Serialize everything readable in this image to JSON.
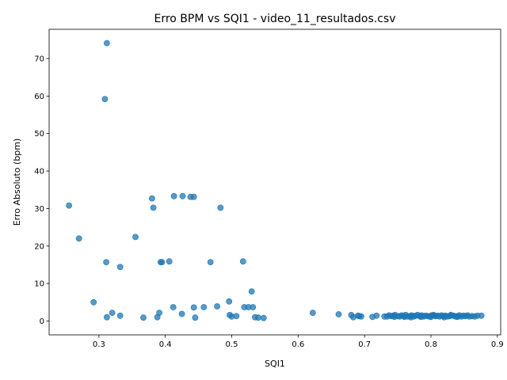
{
  "chart_data": {
    "type": "scatter",
    "title": "Erro BPM vs SQI1 - video_11_resultados.csv",
    "xlabel": "SQI1",
    "ylabel": "Erro Absoluto (bpm)",
    "xlim": [
      0.225,
      0.905
    ],
    "ylim": [
      -3.7,
      77.8
    ],
    "xticks": [
      0.3,
      0.4,
      0.5,
      0.6,
      0.7,
      0.8,
      0.9
    ],
    "xtick_labels": [
      "0.3",
      "0.4",
      "0.5",
      "0.6",
      "0.7",
      "0.8",
      "0.9"
    ],
    "yticks": [
      0,
      10,
      20,
      30,
      40,
      50,
      60,
      70
    ],
    "ytick_labels": [
      "0",
      "10",
      "20",
      "30",
      "40",
      "50",
      "60",
      "70"
    ],
    "grid": false,
    "marker_color": "#1f77b4",
    "series": [
      {
        "points": [
          [
            0.312,
            74.1
          ],
          [
            0.309,
            59.2
          ],
          [
            0.255,
            30.8
          ],
          [
            0.27,
            22.0
          ],
          [
            0.38,
            32.7
          ],
          [
            0.382,
            30.2
          ],
          [
            0.413,
            33.3
          ],
          [
            0.426,
            33.3
          ],
          [
            0.438,
            33.1
          ],
          [
            0.443,
            33.1
          ],
          [
            0.483,
            30.2
          ],
          [
            0.355,
            22.4
          ],
          [
            0.311,
            15.7
          ],
          [
            0.332,
            14.4
          ],
          [
            0.393,
            15.7
          ],
          [
            0.395,
            15.7
          ],
          [
            0.406,
            15.9
          ],
          [
            0.468,
            15.7
          ],
          [
            0.517,
            15.9
          ],
          [
            0.53,
            7.9
          ],
          [
            0.292,
            5.0
          ],
          [
            0.312,
            1.0
          ],
          [
            0.32,
            2.2
          ],
          [
            0.332,
            1.4
          ],
          [
            0.367,
            0.9
          ],
          [
            0.388,
            1.0
          ],
          [
            0.391,
            2.2
          ],
          [
            0.412,
            3.7
          ],
          [
            0.425,
            1.9
          ],
          [
            0.443,
            3.6
          ],
          [
            0.445,
            0.9
          ],
          [
            0.458,
            3.7
          ],
          [
            0.478,
            3.9
          ],
          [
            0.496,
            5.2
          ],
          [
            0.497,
            1.6
          ],
          [
            0.5,
            1.2
          ],
          [
            0.507,
            1.3
          ],
          [
            0.519,
            3.7
          ],
          [
            0.525,
            3.7
          ],
          [
            0.532,
            3.7
          ],
          [
            0.535,
            1.0
          ],
          [
            0.54,
            0.9
          ],
          [
            0.548,
            0.8
          ],
          [
            0.622,
            2.2
          ],
          [
            0.661,
            1.8
          ],
          [
            0.68,
            1.6
          ],
          [
            0.683,
            1.0
          ],
          [
            0.69,
            1.4
          ],
          [
            0.692,
            1.3
          ],
          [
            0.695,
            1.2
          ],
          [
            0.712,
            1.1
          ],
          [
            0.718,
            1.4
          ],
          [
            0.73,
            1.2
          ],
          [
            0.734,
            1.2
          ],
          [
            0.737,
            1.5
          ],
          [
            0.74,
            1.3
          ],
          [
            0.743,
            1.4
          ],
          [
            0.746,
            1.6
          ],
          [
            0.75,
            1.3
          ],
          [
            0.753,
            1.2
          ],
          [
            0.756,
            1.5
          ],
          [
            0.759,
            1.3
          ],
          [
            0.762,
            1.6
          ],
          [
            0.765,
            1.2
          ],
          [
            0.768,
            1.3
          ],
          [
            0.771,
            1.5
          ],
          [
            0.774,
            1.2
          ],
          [
            0.777,
            1.4
          ],
          [
            0.78,
            1.6
          ],
          [
            0.783,
            1.3
          ],
          [
            0.786,
            1.5
          ],
          [
            0.789,
            1.2
          ],
          [
            0.792,
            1.4
          ],
          [
            0.795,
            1.3
          ],
          [
            0.798,
            1.2
          ],
          [
            0.801,
            1.5
          ],
          [
            0.804,
            1.6
          ],
          [
            0.807,
            1.3
          ],
          [
            0.81,
            1.4
          ],
          [
            0.813,
            1.2
          ],
          [
            0.816,
            1.5
          ],
          [
            0.819,
            1.3
          ],
          [
            0.822,
            1.4
          ],
          [
            0.825,
            1.2
          ],
          [
            0.828,
            1.3
          ],
          [
            0.831,
            1.5
          ],
          [
            0.834,
            1.4
          ],
          [
            0.837,
            1.2
          ],
          [
            0.84,
            1.3
          ],
          [
            0.843,
            1.5
          ],
          [
            0.846,
            1.2
          ],
          [
            0.849,
            1.4
          ],
          [
            0.852,
            1.3
          ],
          [
            0.855,
            1.5
          ],
          [
            0.858,
            1.2
          ],
          [
            0.862,
            1.3
          ],
          [
            0.866,
            1.2
          ],
          [
            0.87,
            1.4
          ],
          [
            0.876,
            1.4
          ],
          [
            0.76,
            1.1
          ],
          [
            0.8,
            1.1
          ],
          [
            0.82,
            1.0
          ],
          [
            0.84,
            1.1
          ],
          [
            0.77,
            1.0
          ],
          [
            0.785,
            1.1
          ],
          [
            0.83,
            1.6
          ],
          [
            0.805,
            1.4
          ],
          [
            0.745,
            1.1
          ]
        ]
      }
    ]
  }
}
